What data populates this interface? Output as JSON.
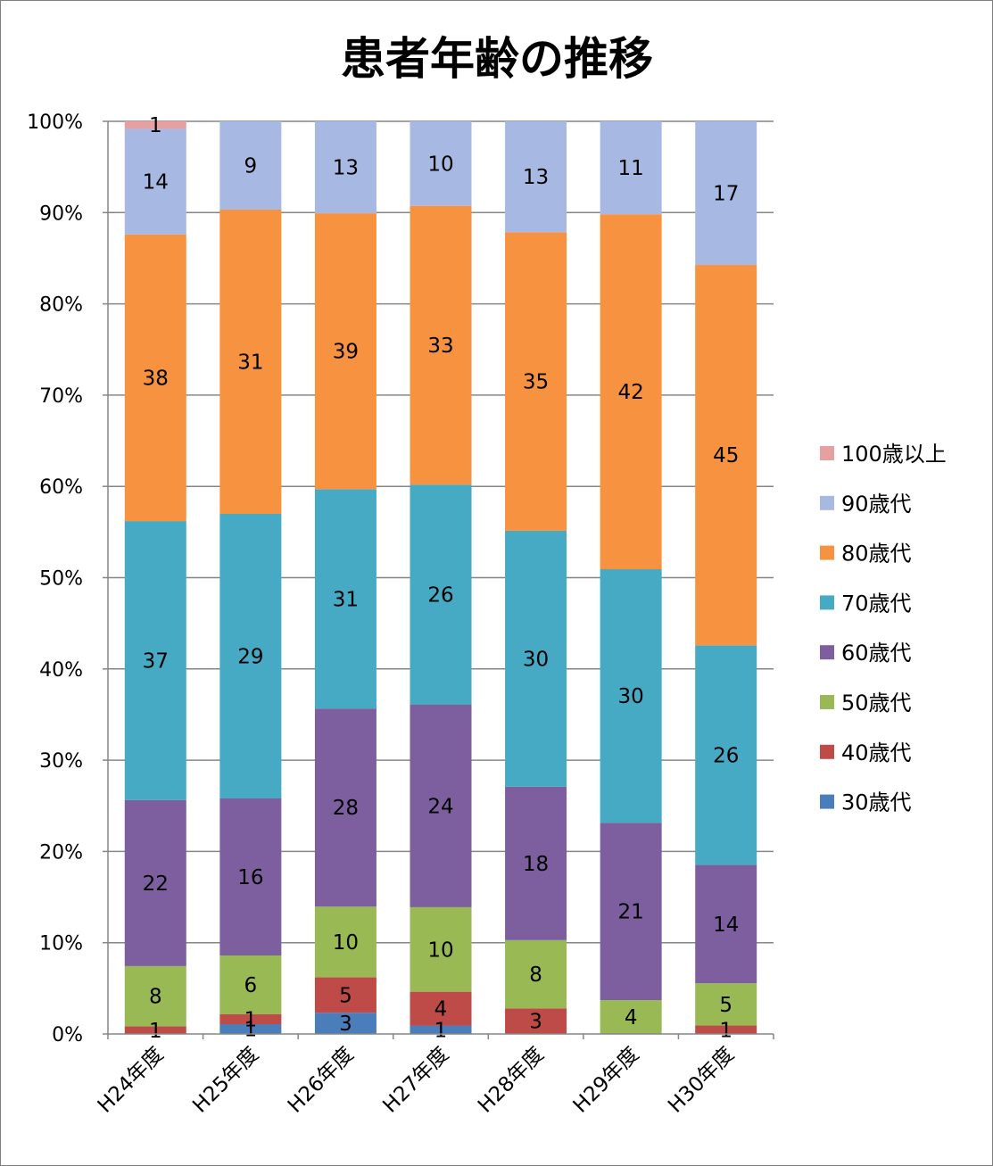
{
  "chart_data": {
    "type": "bar",
    "stacked": "percent",
    "title": "患者年齢の推移",
    "categories": [
      "H24年度",
      "H25年度",
      "H26年度",
      "H27年度",
      "H28年度",
      "H29年度",
      "H30年度"
    ],
    "series": [
      {
        "name": "30歳代",
        "color": "#4a7ebb",
        "values": [
          0,
          1,
          3,
          1,
          0,
          0,
          0
        ]
      },
      {
        "name": "40歳代",
        "color": "#be4b48",
        "values": [
          1,
          1,
          5,
          4,
          3,
          0,
          1
        ]
      },
      {
        "name": "50歳代",
        "color": "#98b954",
        "values": [
          8,
          6,
          10,
          10,
          8,
          4,
          5
        ]
      },
      {
        "name": "60歳代",
        "color": "#7d5fa0",
        "values": [
          22,
          16,
          28,
          24,
          18,
          21,
          14
        ]
      },
      {
        "name": "70歳代",
        "color": "#46aac5",
        "values": [
          37,
          29,
          31,
          26,
          30,
          30,
          26
        ]
      },
      {
        "name": "80歳代",
        "color": "#f69240",
        "values": [
          38,
          31,
          39,
          33,
          35,
          42,
          45
        ]
      },
      {
        "name": "90歳代",
        "color": "#a7b9e3",
        "values": [
          14,
          9,
          13,
          10,
          13,
          11,
          17
        ]
      },
      {
        "name": "100歳以上",
        "color": "#e6a0a0",
        "values": [
          1,
          0,
          0,
          0,
          0,
          0,
          0
        ]
      }
    ],
    "yaxis_ticks": [
      "0%",
      "10%",
      "20%",
      "30%",
      "40%",
      "50%",
      "60%",
      "70%",
      "80%",
      "90%",
      "100%"
    ],
    "ylim": [
      0,
      100
    ],
    "grid": true,
    "legend_position": "right",
    "legend_order": [
      "100歳以上",
      "90歳代",
      "80歳代",
      "70歳代",
      "60歳代",
      "50歳代",
      "40歳代",
      "30歳代"
    ]
  }
}
